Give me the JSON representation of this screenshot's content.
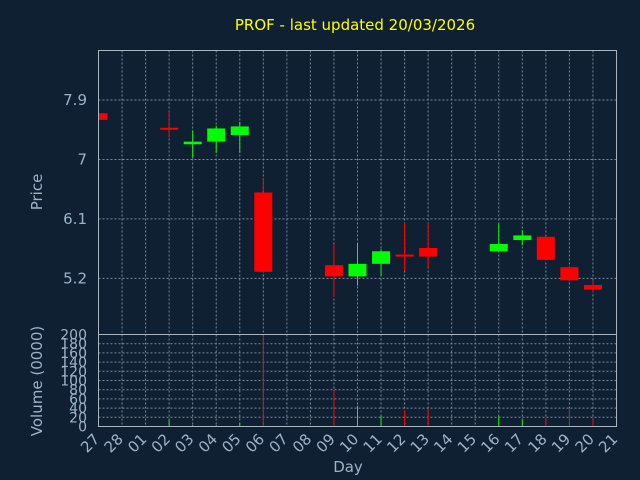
{
  "chart_data": {
    "type": "candlestick",
    "title": "PROF - last updated 20/03/2026",
    "price_axis": {
      "label": "Price",
      "ticks": [
        5.2,
        6.1,
        7,
        7.9
      ],
      "tick_labels": [
        "5.2",
        "6.1",
        "7",
        "7.9"
      ],
      "range": [
        4.35,
        8.65
      ]
    },
    "volume_axis": {
      "label": "Volume (0000)",
      "ticks": [
        0,
        20,
        40,
        60,
        80,
        100,
        120,
        140,
        160,
        180,
        200
      ],
      "tick_labels": [
        "0",
        "20",
        "40",
        "60",
        "80",
        "100",
        "120",
        "140",
        "160",
        "180",
        "200"
      ],
      "range": [
        0,
        200
      ]
    },
    "x_axis": {
      "label": "Day",
      "tick_labels": [
        "27",
        "28",
        "01",
        "02",
        "03",
        "04",
        "05",
        "06",
        "07",
        "08",
        "09",
        "10",
        "11",
        "12",
        "13",
        "14",
        "15",
        "16",
        "17",
        "18",
        "19",
        "20",
        "21"
      ]
    },
    "grid": true,
    "up_color": "#00ff00",
    "down_color": "#ff0000",
    "candles": [
      {
        "day": "27",
        "open": 7.7,
        "high": 7.7,
        "low": 7.6,
        "close": 7.6,
        "volume": 0
      },
      {
        "day": "02",
        "open": 7.48,
        "high": 7.73,
        "low": 7.33,
        "close": 7.48,
        "volume": 15
      },
      {
        "day": "03",
        "open": 7.23,
        "high": 7.44,
        "low": 7.02,
        "close": 7.27,
        "volume": 3
      },
      {
        "day": "04",
        "open": 7.27,
        "high": 7.51,
        "low": 7.1,
        "close": 7.47,
        "volume": 3
      },
      {
        "day": "05",
        "open": 7.37,
        "high": 7.57,
        "low": 7.1,
        "close": 7.5,
        "volume": 8
      },
      {
        "day": "06",
        "open": 6.5,
        "high": 6.72,
        "low": 5.3,
        "close": 5.3,
        "volume": 200
      },
      {
        "day": "09",
        "open": 5.4,
        "high": 5.72,
        "low": 4.92,
        "close": 5.23,
        "volume": 80
      },
      {
        "day": "10",
        "open": 5.23,
        "high": 5.73,
        "low": 5.09,
        "close": 5.42,
        "volume": 45
      },
      {
        "day": "11",
        "open": 5.42,
        "high": 5.64,
        "low": 5.23,
        "close": 5.61,
        "volume": 22
      },
      {
        "day": "12",
        "open": 5.56,
        "high": 6.04,
        "low": 5.31,
        "close": 5.53,
        "volume": 35
      },
      {
        "day": "13",
        "open": 5.66,
        "high": 6.04,
        "low": 5.36,
        "close": 5.53,
        "volume": 38
      },
      {
        "day": "16",
        "open": 5.61,
        "high": 6.03,
        "low": 5.61,
        "close": 5.72,
        "volume": 22
      },
      {
        "day": "17",
        "open": 5.78,
        "high": 5.93,
        "low": 5.7,
        "close": 5.85,
        "volume": 14
      },
      {
        "day": "18",
        "open": 5.83,
        "high": 5.83,
        "low": 5.47,
        "close": 5.48,
        "volume": 18
      },
      {
        "day": "19",
        "open": 5.37,
        "high": 5.37,
        "low": 5.15,
        "close": 5.17,
        "volume": 38
      },
      {
        "day": "20",
        "open": 5.1,
        "high": 5.16,
        "low": 4.99,
        "close": 5.03,
        "volume": 16
      }
    ]
  }
}
